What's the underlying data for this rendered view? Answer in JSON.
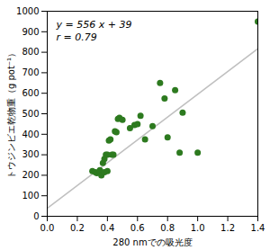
{
  "chart_data": {
    "type": "scatter",
    "xlabel": "280 nmでの吸光度",
    "ylabel": "トウジンビエ乾物重（g pot⁻¹）",
    "annotations": [
      "y = 556 x + 39",
      "r = 0.79"
    ],
    "series": [
      {
        "type": "line",
        "color": "#c0c0c0",
        "x": [
          0.0,
          1.4
        ],
        "values": [
          39,
          817.4
        ]
      },
      {
        "type": "scatter",
        "color": "#2d7a1f",
        "x": [
          0.3,
          0.32,
          0.33,
          0.35,
          0.35,
          0.36,
          0.37,
          0.38,
          0.38,
          0.39,
          0.4,
          0.4,
          0.41,
          0.42,
          0.43,
          0.44,
          0.45,
          0.46,
          0.47,
          0.48,
          0.5,
          0.55,
          0.58,
          0.6,
          0.62,
          0.65,
          0.7,
          0.75,
          0.78,
          0.8,
          0.85,
          0.88,
          0.9,
          1.0,
          1.4
        ],
        "values": [
          220,
          215,
          210,
          220,
          225,
          200,
          260,
          215,
          280,
          300,
          300,
          220,
          370,
          375,
          300,
          300,
          415,
          410,
          475,
          480,
          470,
          430,
          445,
          450,
          490,
          375,
          440,
          650,
          575,
          385,
          615,
          310,
          505,
          310,
          950
        ]
      }
    ],
    "xlim": [
      0.0,
      1.4
    ],
    "ylim": [
      0,
      1000
    ],
    "xticks": [
      {
        "value": 0,
        "label": "0.0"
      },
      0.2,
      0.4,
      0.6,
      0.8,
      {
        "value": 1,
        "label": "1.0"
      },
      1.2,
      1.4
    ],
    "yticks": [
      0,
      100,
      200,
      300,
      400,
      500,
      600,
      700,
      800,
      900,
      1000
    ],
    "grid": false
  }
}
